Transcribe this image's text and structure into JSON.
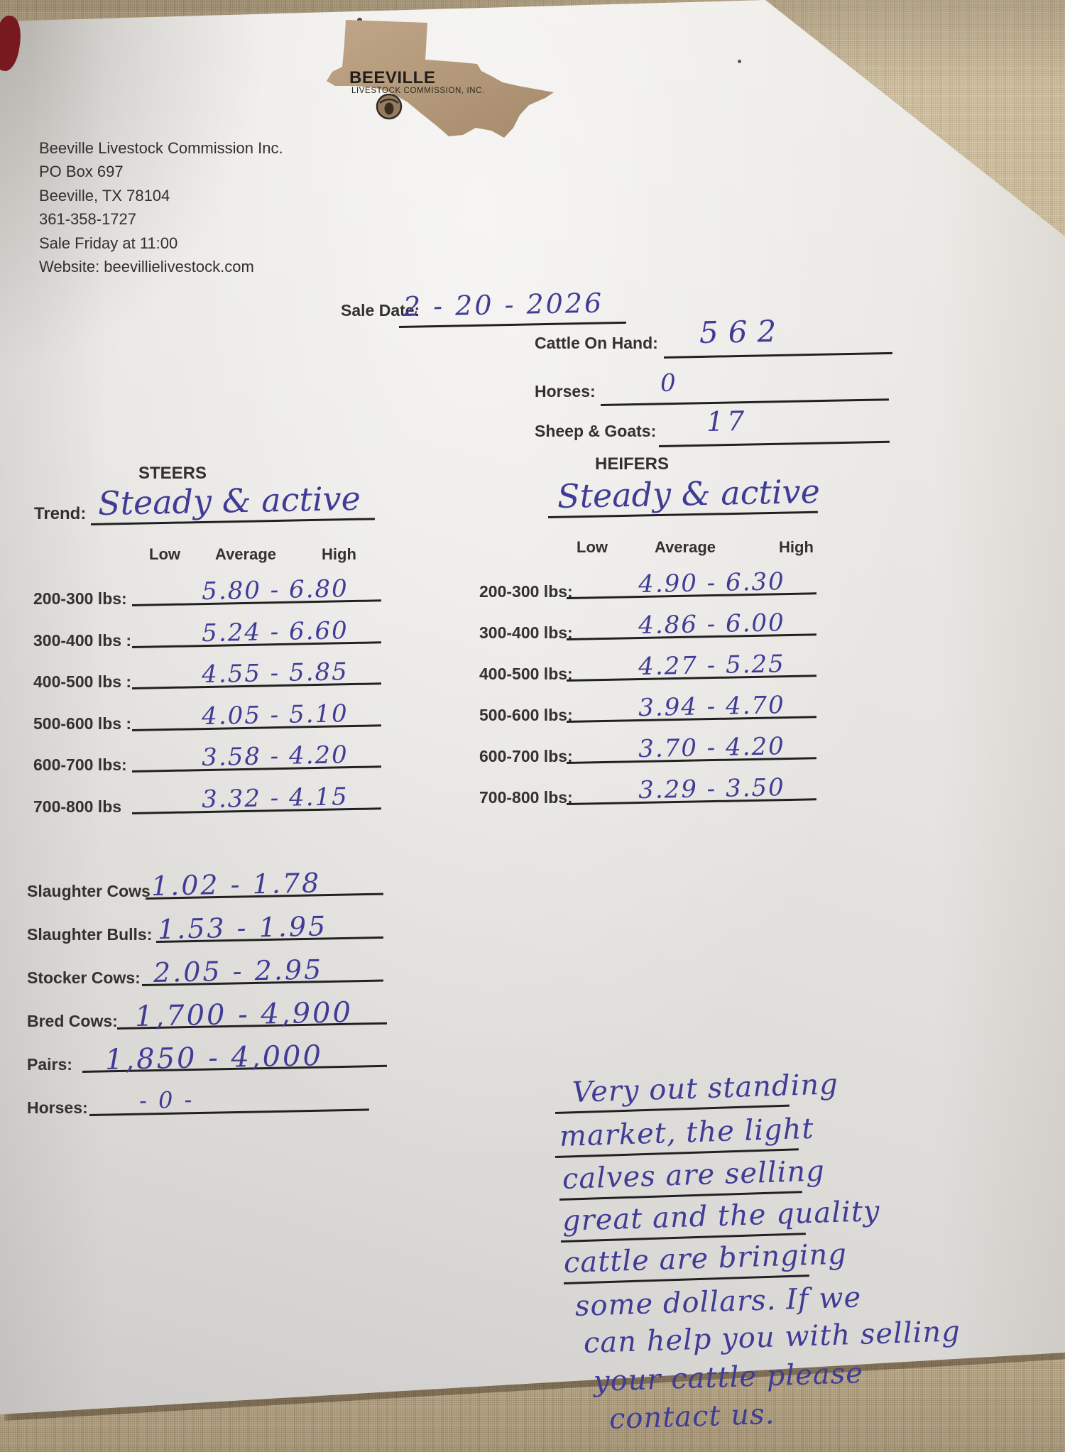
{
  "page": {
    "kind": "Livestock auction market report sheet (photographed paper form)",
    "colors": {
      "fabric_background": "#c6b697",
      "paper": "#e8e6e3",
      "handwriting_ink": "#3f3c96",
      "printed_text": "#33312d",
      "logo_tan": "#b29878",
      "corner_blob_maroon": "#77191f"
    }
  },
  "logo": {
    "icon": "texas-map",
    "emblem_icon": "steer-head",
    "name": "BEEVILLE",
    "subtitle": "LIVESTOCK COMMISSION, INC."
  },
  "header": {
    "lines": [
      "Beeville Livestock Commission Inc.",
      "PO Box 697",
      "Beeville, TX 78104",
      "361-358-1727",
      "Sale Friday at 11:00",
      "Website: beevillielivestock.com"
    ]
  },
  "sale_info": {
    "sale_date_label": "Sale Date:",
    "sale_date_value": "2 - 20 - 2026",
    "fields": [
      {
        "label": "Cattle On Hand:",
        "value": "562"
      },
      {
        "label": "Horses:",
        "value": "0"
      },
      {
        "label": "Sheep & Goats:",
        "value": "17"
      }
    ]
  },
  "steers": {
    "title": "STEERS",
    "trend_label": "Trend:",
    "trend_value": "Steady & active",
    "columns": [
      "Low",
      "Average",
      "High"
    ],
    "rows": [
      {
        "label": "200-300 lbs:",
        "value": "5.80 - 6.80"
      },
      {
        "label": "300-400 lbs :",
        "value": "5.24 - 6.60"
      },
      {
        "label": "400-500 lbs :",
        "value": "4.55 - 5.85"
      },
      {
        "label": "500-600 lbs :",
        "value": "4.05 - 5.10"
      },
      {
        "label": "600-700 lbs:",
        "value": "3.58 - 4.20"
      },
      {
        "label": "700-800 lbs",
        "value": "3.32 - 4.15"
      }
    ]
  },
  "heifers": {
    "title": "HEIFERS",
    "trend_value": "Steady & active",
    "columns": [
      "Low",
      "Average",
      "High"
    ],
    "rows": [
      {
        "label": "200-300 lbs:",
        "value": "4.90 - 6.30"
      },
      {
        "label": "300-400 lbs:",
        "value": "4.86 - 6.00"
      },
      {
        "label": "400-500 lbs:",
        "value": "4.27 - 5.25"
      },
      {
        "label": "500-600 lbs:",
        "value": "3.94 - 4.70"
      },
      {
        "label": "600-700 lbs:",
        "value": "3.70 - 4.20"
      },
      {
        "label": "700-800 lbs:",
        "value": "3.29 - 3.50"
      }
    ]
  },
  "other_stock": {
    "rows": [
      {
        "label": "Slaughter Cows",
        "value": "1.02 - 1.78"
      },
      {
        "label": "Slaughter Bulls:",
        "value": "1.53 - 1.95"
      },
      {
        "label": "Stocker Cows:",
        "value": "2.05 - 2.95"
      },
      {
        "label": "Bred Cows:",
        "value": "1,700 - 4,900"
      },
      {
        "label": "Pairs:",
        "value": "1,850 - 4,000"
      },
      {
        "label": "Horses:",
        "value": "- 0 -"
      }
    ]
  },
  "note": {
    "lines": [
      "Very out standing",
      "market, the light",
      "calves are selling",
      "great and the quality",
      "cattle are bringing",
      "some dollars. If we",
      "can help you with selling",
      "your cattle please",
      "contact us."
    ]
  }
}
